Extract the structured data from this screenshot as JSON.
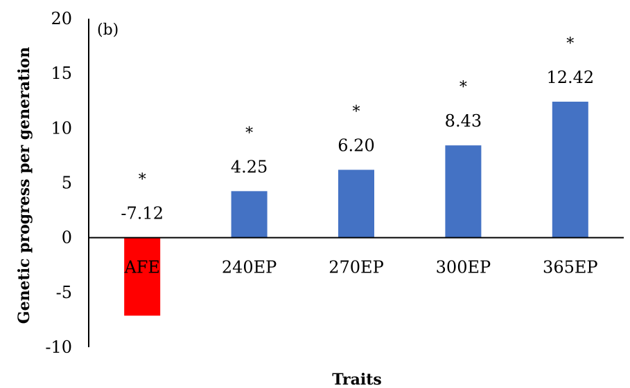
{
  "chart_data": {
    "type": "bar",
    "panel_label": "(b)",
    "title": "",
    "xlabel": "Traits",
    "ylabel": "Genetic progress per generation",
    "ylim": [
      -10,
      20
    ],
    "yticks": [
      -10,
      -5,
      0,
      5,
      10,
      15,
      20
    ],
    "categories": [
      "AFE",
      "240EP",
      "270EP",
      "300EP",
      "365EP"
    ],
    "values": [
      -7.12,
      4.25,
      6.2,
      8.43,
      12.42
    ],
    "data_labels": [
      "-7.12",
      "4.25",
      "6.20",
      "8.43",
      "12.42"
    ],
    "significance": [
      "*",
      "*",
      "*",
      "*",
      "*"
    ],
    "colors": [
      "#ff0000",
      "#4472c4",
      "#4472c4",
      "#4472c4",
      "#4472c4"
    ],
    "grid": false,
    "legend": "none"
  }
}
